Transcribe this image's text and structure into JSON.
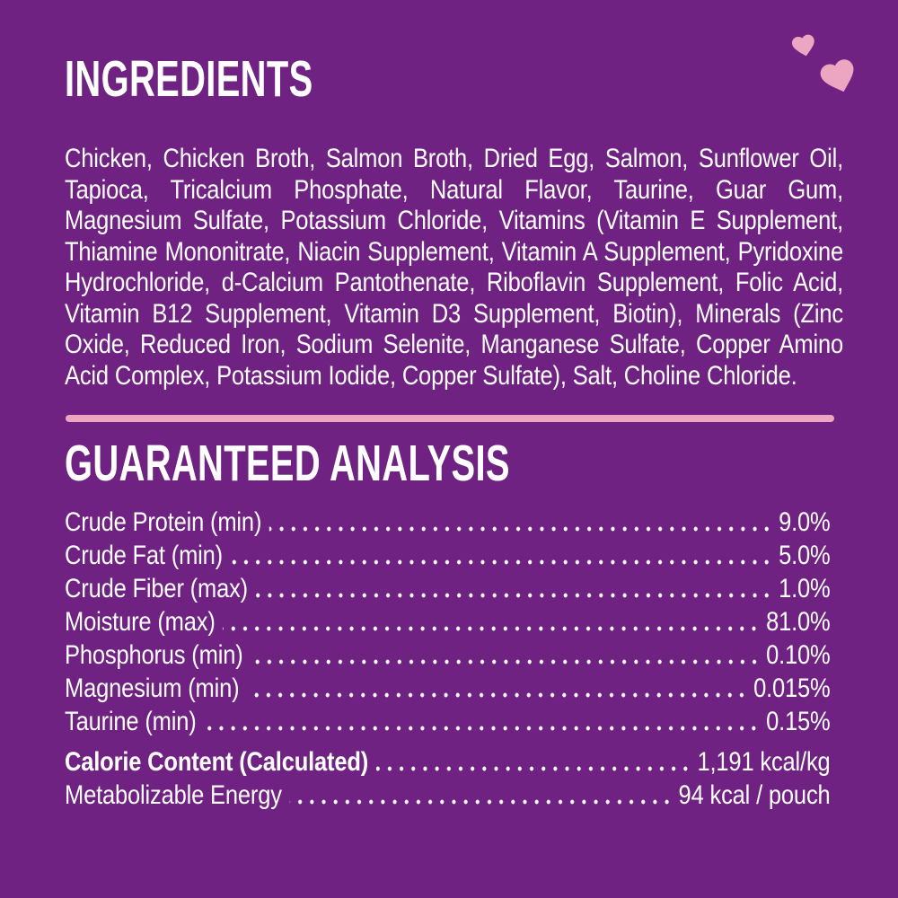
{
  "page": {
    "background_color": "#6f2282",
    "text_color": "#ffffff",
    "accent_pink": "#eca6c2"
  },
  "decorations": {
    "hearts": [
      {
        "name": "small-heart",
        "color": "#eca6c2"
      },
      {
        "name": "large-heart",
        "color": "#eca6c2"
      }
    ]
  },
  "ingredients": {
    "heading": "INGREDIENTS",
    "body": "Chicken, Chicken Broth, Salmon Broth, Dried Egg, Salmon, Sunflower Oil, Tapioca, Tricalcium Phosphate, Natural Flavor, Taurine, Guar Gum, Magnesium Sulfate, Potassium Chloride, Vitamins (Vitamin E Supplement, Thiamine Mononitrate, Niacin Supplement, Vitamin A Supplement, Pyridoxine Hydrochloride, d-Calcium Pantothenate, Riboflavin Supplement, Folic Acid, Vitamin B12 Supplement, Vitamin D3 Supplement, Biotin), Minerals (Zinc Oxide, Reduced Iron, Sodium Selenite, Manganese Sulfate, Copper Amino Acid Complex, Potassium Iodide, Copper Sulfate), Salt, Choline Chloride."
  },
  "guaranteed_analysis": {
    "heading": "GUARANTEED ANALYSIS",
    "rows": [
      {
        "label": "Crude Protein (min)",
        "value": "9.0%"
      },
      {
        "label": "Crude Fat (min)",
        "value": "5.0%"
      },
      {
        "label": "Crude Fiber (max)",
        "value": "1.0%"
      },
      {
        "label": "Moisture (max)",
        "value": "81.0%"
      },
      {
        "label": "Phosphorus (min)",
        "value": "0.10%"
      },
      {
        "label": "Magnesium (min)",
        "value": "0.015%"
      },
      {
        "label": "Taurine (min)",
        "value": "0.15%"
      }
    ],
    "calorie_rows": [
      {
        "label": "Calorie Content (Calculated)",
        "value": "1,191 kcal/kg",
        "bold": true
      },
      {
        "label": "Metabolizable Energy",
        "value": "94 kcal / pouch",
        "bold": false
      }
    ]
  }
}
